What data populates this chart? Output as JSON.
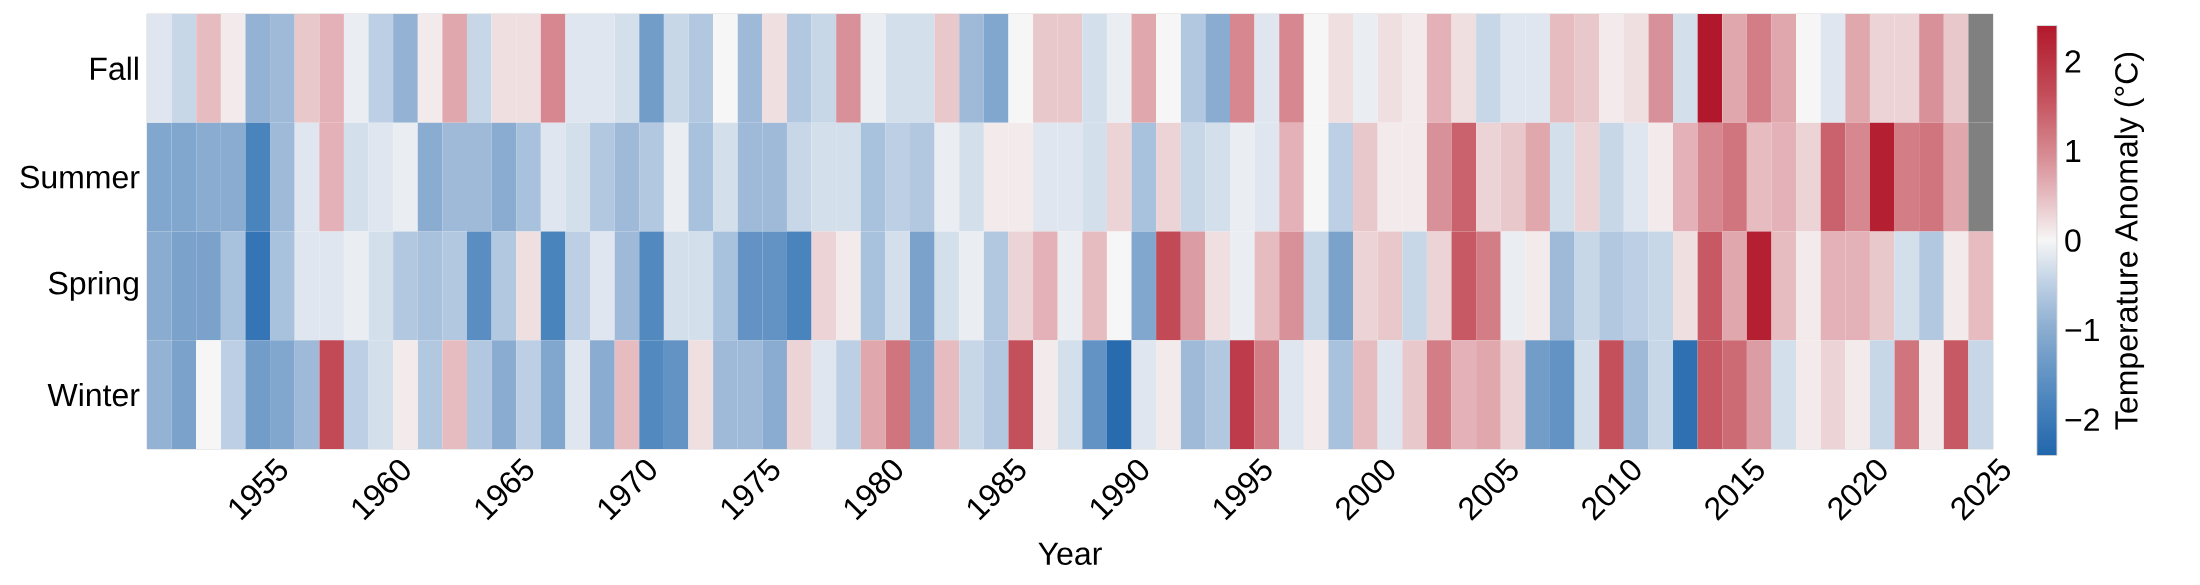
{
  "chart_data": {
    "type": "heatmap",
    "xlabel": "Year",
    "clabel": "Temperature Anomaly (°C)",
    "categories": [
      null,
      null,
      null,
      null,
      "1955",
      null,
      null,
      null,
      null,
      "1960",
      null,
      null,
      null,
      null,
      "1965",
      null,
      null,
      null,
      null,
      "1970",
      null,
      null,
      null,
      null,
      "1975",
      null,
      null,
      null,
      null,
      "1980",
      null,
      null,
      null,
      null,
      "1985",
      null,
      null,
      null,
      null,
      "1990",
      null,
      null,
      null,
      null,
      "1995",
      null,
      null,
      null,
      null,
      "2000",
      null,
      null,
      null,
      null,
      "2005",
      null,
      null,
      null,
      null,
      "2010",
      null,
      null,
      null,
      null,
      "2015",
      null,
      null,
      null,
      null,
      "2020",
      null,
      null,
      null,
      null,
      "2025"
    ],
    "y_categories": [
      "Fall",
      "Summer",
      "Spring",
      "Winter"
    ],
    "cells": [
      [
        -0.2,
        -0.4,
        0.5,
        0.1,
        -0.9,
        -0.8,
        0.4,
        0.6,
        -0.1,
        -0.5,
        -0.9,
        0.1,
        0.7,
        -0.4,
        0.2,
        0.2,
        1.0,
        -0.2,
        -0.2,
        -0.3,
        -1.3,
        -0.4,
        -0.6,
        0.0,
        -0.8,
        0.2,
        -0.6,
        -0.4,
        0.9,
        -0.1,
        -0.3,
        -0.3,
        0.4,
        -0.8,
        -1.1,
        0.0,
        0.4,
        0.4,
        -0.3,
        -0.1,
        0.7,
        0.0,
        -0.6,
        -1.0,
        1.0,
        -0.2,
        1.0,
        0.0,
        0.2,
        -0.1,
        0.2,
        0.1,
        0.6,
        0.2,
        -0.4,
        -0.2,
        -0.2,
        0.5,
        0.4,
        0.1,
        0.2,
        0.9,
        -0.3,
        2.4,
        0.7,
        1.1,
        0.7,
        0.0,
        -0.2,
        0.7,
        0.3,
        0.3,
        0.9,
        0.4,
        null
      ],
      [
        -1.1,
        -1.1,
        -1.0,
        -1.0,
        -1.8,
        -0.8,
        -0.2,
        0.6,
        -0.3,
        -0.2,
        -0.1,
        -1.0,
        -0.8,
        -0.8,
        -1.0,
        -0.7,
        -0.2,
        -0.3,
        -0.6,
        -0.8,
        -0.6,
        -0.1,
        -0.7,
        -0.3,
        -0.8,
        -0.8,
        -0.4,
        -0.3,
        -0.3,
        -0.7,
        -0.5,
        -0.6,
        -0.1,
        -0.3,
        0.1,
        0.1,
        -0.2,
        -0.2,
        -0.3,
        0.3,
        -0.7,
        0.3,
        -0.4,
        -0.3,
        -0.1,
        -0.2,
        0.6,
        0.0,
        -0.5,
        0.4,
        0.1,
        0.1,
        0.9,
        1.4,
        0.3,
        0.4,
        0.7,
        -0.3,
        0.3,
        -0.4,
        -0.2,
        0.1,
        0.6,
        1.0,
        1.2,
        0.5,
        0.6,
        0.3,
        1.4,
        1.0,
        2.3,
        1.1,
        1.2,
        0.7,
        null
      ],
      [
        -1.0,
        -1.2,
        -1.2,
        -0.7,
        -2.1,
        -0.7,
        -0.2,
        -0.2,
        -0.1,
        -0.3,
        -0.6,
        -0.7,
        -0.6,
        -1.6,
        -0.6,
        0.2,
        -1.8,
        -0.5,
        -0.2,
        -0.8,
        -1.7,
        -0.3,
        -0.3,
        -0.7,
        -1.5,
        -1.5,
        -1.8,
        0.3,
        0.1,
        -0.7,
        -0.3,
        -1.2,
        -0.3,
        -0.1,
        -0.6,
        0.3,
        0.6,
        -0.1,
        0.5,
        0.0,
        -1.1,
        1.7,
        0.8,
        0.2,
        -0.1,
        0.5,
        0.9,
        -0.4,
        -1.2,
        0.3,
        0.4,
        -0.4,
        0.3,
        1.5,
        1.1,
        -0.1,
        0.1,
        -0.8,
        -0.4,
        -0.6,
        -0.5,
        -0.4,
        0.2,
        1.5,
        0.7,
        2.3,
        0.5,
        0.1,
        0.6,
        0.6,
        0.4,
        -0.3,
        -0.6,
        0.1,
        0.5
      ],
      [
        -0.9,
        -1.2,
        0.0,
        -0.5,
        -1.3,
        -1.1,
        -0.8,
        1.7,
        -0.5,
        -0.3,
        0.1,
        -0.6,
        0.5,
        -0.6,
        -1.0,
        -0.5,
        -1.1,
        -0.2,
        -1.0,
        0.5,
        -1.7,
        -1.5,
        0.2,
        -0.8,
        -0.8,
        -1.0,
        0.3,
        -0.2,
        -0.5,
        0.7,
        1.2,
        -1.2,
        0.5,
        -0.4,
        -0.6,
        1.6,
        0.1,
        -0.3,
        -1.5,
        -2.3,
        -0.2,
        0.1,
        -0.8,
        -0.6,
        1.9,
        1.1,
        -0.2,
        0.1,
        -0.7,
        0.5,
        -0.2,
        0.4,
        1.1,
        0.6,
        0.7,
        0.3,
        -1.3,
        -1.5,
        -0.3,
        1.6,
        -0.8,
        -0.4,
        -2.2,
        1.5,
        1.3,
        0.8,
        -0.3,
        0.1,
        0.3,
        0.1,
        -0.4,
        1.2,
        0.1,
        1.5,
        -0.4
      ]
    ],
    "clim": [
      -2.4,
      2.4
    ],
    "cticks": [
      {
        "value": -2,
        "label": "−2"
      },
      {
        "value": -1,
        "label": "−1"
      },
      0,
      1,
      2
    ]
  }
}
